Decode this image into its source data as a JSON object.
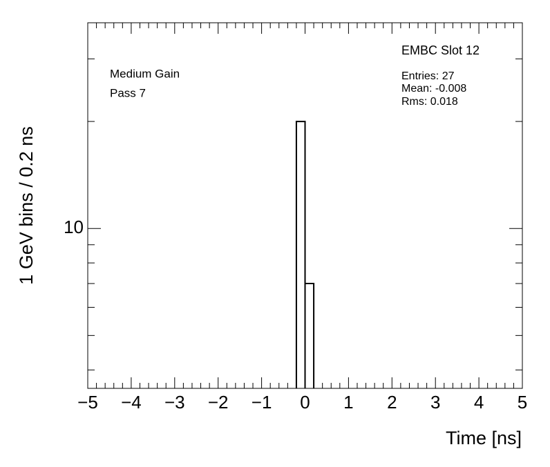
{
  "chart_data": {
    "type": "histogram",
    "x_label": "Time [ns]",
    "y_label": "1 GeV bins / 0.2 ns",
    "bins": [
      -0.2,
      0,
      0.2
    ],
    "counts": [
      20,
      7
    ],
    "color": "#000000",
    "xlim": [
      -5,
      5
    ],
    "xticks": [
      {
        "value": -5,
        "label": "−5"
      },
      {
        "value": -4,
        "label": "−4"
      },
      {
        "value": -3,
        "label": "−3"
      },
      {
        "value": -2,
        "label": "−2"
      },
      {
        "value": -1,
        "label": "−1"
      },
      0,
      1,
      2,
      3,
      4,
      5
    ],
    "ylim": [
      3.55,
      37.9
    ],
    "yticks": [
      10
    ],
    "log_y": true,
    "grid": false,
    "annotations": [
      "Medium Gain",
      "Pass 7"
    ],
    "stats_title": "EMBC Slot 12",
    "stats": [
      "Entries: 27",
      "Mean: -0.008",
      "Rms: 0.018"
    ]
  }
}
